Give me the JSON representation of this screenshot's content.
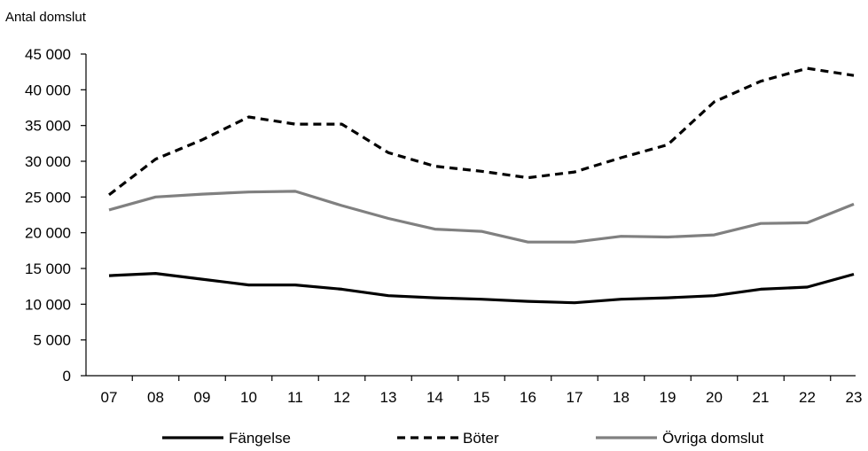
{
  "chart_data": {
    "type": "line",
    "ylabel": "Antal domslut",
    "categories": [
      "07",
      "08",
      "09",
      "10",
      "11",
      "12",
      "13",
      "14",
      "15",
      "16",
      "17",
      "18",
      "19",
      "20",
      "21",
      "22",
      "23"
    ],
    "ylim": [
      0,
      45000
    ],
    "y_ticks": [
      0,
      5000,
      10000,
      15000,
      20000,
      25000,
      30000,
      35000,
      40000,
      45000
    ],
    "y_tick_labels": [
      "0",
      "5 000",
      "10 000",
      "15 000",
      "20 000",
      "25 000",
      "30 000",
      "35 000",
      "40 000",
      "45 000"
    ],
    "grid": false,
    "legend_position": "bottom",
    "series": [
      {
        "name": "Fängelse",
        "color": "#000000",
        "style": "solid",
        "values": [
          14000,
          14300,
          13500,
          12700,
          12700,
          12100,
          11200,
          10900,
          10700,
          10400,
          10200,
          10700,
          10900,
          11200,
          12100,
          12400,
          14200
        ]
      },
      {
        "name": "Böter",
        "color": "#000000",
        "style": "dashed",
        "values": [
          25300,
          30300,
          33000,
          36200,
          35200,
          35200,
          31200,
          29300,
          28600,
          27700,
          28500,
          30500,
          32300,
          38300,
          41200,
          43000,
          42000
        ]
      },
      {
        "name": "Övriga domslut",
        "color": "#808080",
        "style": "solid",
        "values": [
          23200,
          25000,
          25400,
          25700,
          25800,
          23800,
          22000,
          20500,
          20200,
          18700,
          18700,
          19500,
          19400,
          19700,
          21300,
          21400,
          24000
        ]
      }
    ]
  }
}
